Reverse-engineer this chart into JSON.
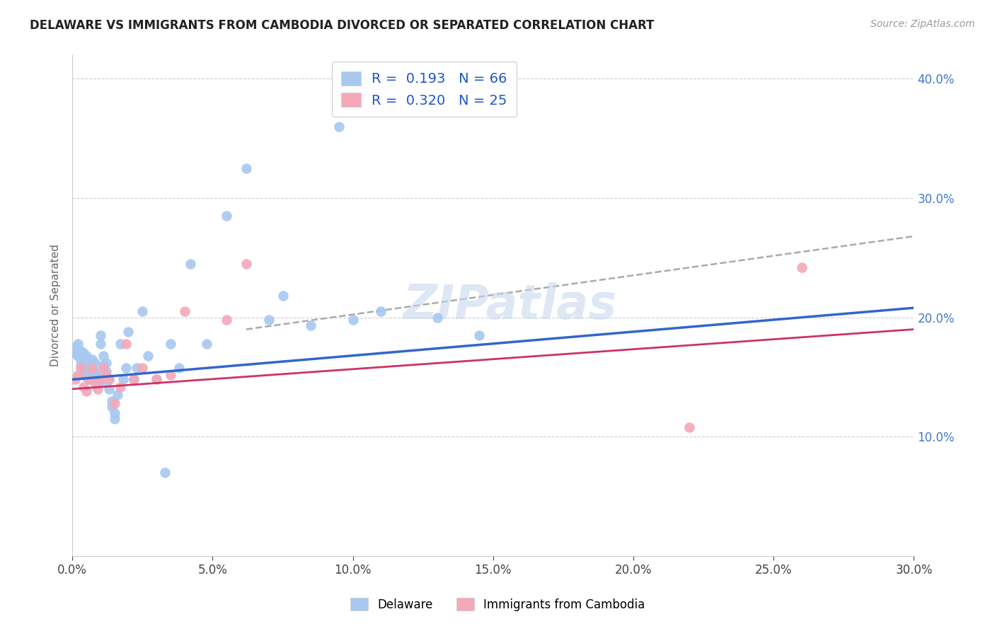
{
  "title": "DELAWARE VS IMMIGRANTS FROM CAMBODIA DIVORCED OR SEPARATED CORRELATION CHART",
  "source": "Source: ZipAtlas.com",
  "watermark": "ZIPatlas",
  "legend_label1": "Delaware",
  "legend_label2": "Immigrants from Cambodia",
  "blue_color": "#A8C8F0",
  "pink_color": "#F4A8B8",
  "line_blue": "#3366CC",
  "line_pink": "#CC3366",
  "line_dashed": "#AAAAAA",
  "R1": 0.193,
  "N1": 66,
  "R2": 0.32,
  "N2": 25,
  "xmin": 0.0,
  "xmax": 0.3,
  "ymin": 0.0,
  "ymax": 0.42,
  "x_ticks": [
    0.0,
    0.05,
    0.1,
    0.15,
    0.2,
    0.25,
    0.3
  ],
  "y_ticks": [
    0.0,
    0.1,
    0.2,
    0.3,
    0.4
  ],
  "blue_x": [
    0.001,
    0.001,
    0.002,
    0.002,
    0.002,
    0.003,
    0.003,
    0.003,
    0.003,
    0.004,
    0.004,
    0.004,
    0.004,
    0.005,
    0.005,
    0.005,
    0.005,
    0.006,
    0.006,
    0.006,
    0.007,
    0.007,
    0.007,
    0.008,
    0.008,
    0.008,
    0.009,
    0.009,
    0.01,
    0.01,
    0.011,
    0.011,
    0.012,
    0.012,
    0.012,
    0.013,
    0.013,
    0.014,
    0.014,
    0.015,
    0.015,
    0.016,
    0.017,
    0.018,
    0.019,
    0.02,
    0.022,
    0.023,
    0.025,
    0.027,
    0.03,
    0.033,
    0.035,
    0.038,
    0.042,
    0.048,
    0.055,
    0.062,
    0.07,
    0.075,
    0.085,
    0.095,
    0.1,
    0.11,
    0.13,
    0.145
  ],
  "blue_y": [
    0.17,
    0.175,
    0.168,
    0.172,
    0.178,
    0.16,
    0.165,
    0.168,
    0.172,
    0.155,
    0.16,
    0.165,
    0.17,
    0.15,
    0.155,
    0.16,
    0.168,
    0.148,
    0.155,
    0.162,
    0.155,
    0.16,
    0.165,
    0.148,
    0.155,
    0.162,
    0.145,
    0.152,
    0.178,
    0.185,
    0.16,
    0.168,
    0.145,
    0.155,
    0.162,
    0.14,
    0.148,
    0.125,
    0.13,
    0.115,
    0.12,
    0.135,
    0.178,
    0.148,
    0.158,
    0.188,
    0.148,
    0.158,
    0.205,
    0.168,
    0.148,
    0.07,
    0.178,
    0.158,
    0.245,
    0.178,
    0.285,
    0.325,
    0.198,
    0.218,
    0.193,
    0.36,
    0.198,
    0.205,
    0.2,
    0.185
  ],
  "pink_x": [
    0.001,
    0.002,
    0.003,
    0.004,
    0.005,
    0.006,
    0.007,
    0.008,
    0.009,
    0.01,
    0.011,
    0.012,
    0.013,
    0.015,
    0.017,
    0.019,
    0.022,
    0.025,
    0.03,
    0.035,
    0.04,
    0.055,
    0.062,
    0.22,
    0.26
  ],
  "pink_y": [
    0.148,
    0.152,
    0.158,
    0.142,
    0.138,
    0.148,
    0.158,
    0.145,
    0.14,
    0.148,
    0.158,
    0.152,
    0.148,
    0.128,
    0.142,
    0.178,
    0.148,
    0.158,
    0.148,
    0.152,
    0.205,
    0.198,
    0.245,
    0.108,
    0.242
  ],
  "blue_line_x": [
    0.0,
    0.3
  ],
  "blue_line_y": [
    0.148,
    0.208
  ],
  "pink_line_x": [
    0.0,
    0.3
  ],
  "pink_line_y": [
    0.14,
    0.19
  ],
  "dashed_line_x": [
    0.062,
    0.3
  ],
  "dashed_line_y": [
    0.19,
    0.268
  ]
}
